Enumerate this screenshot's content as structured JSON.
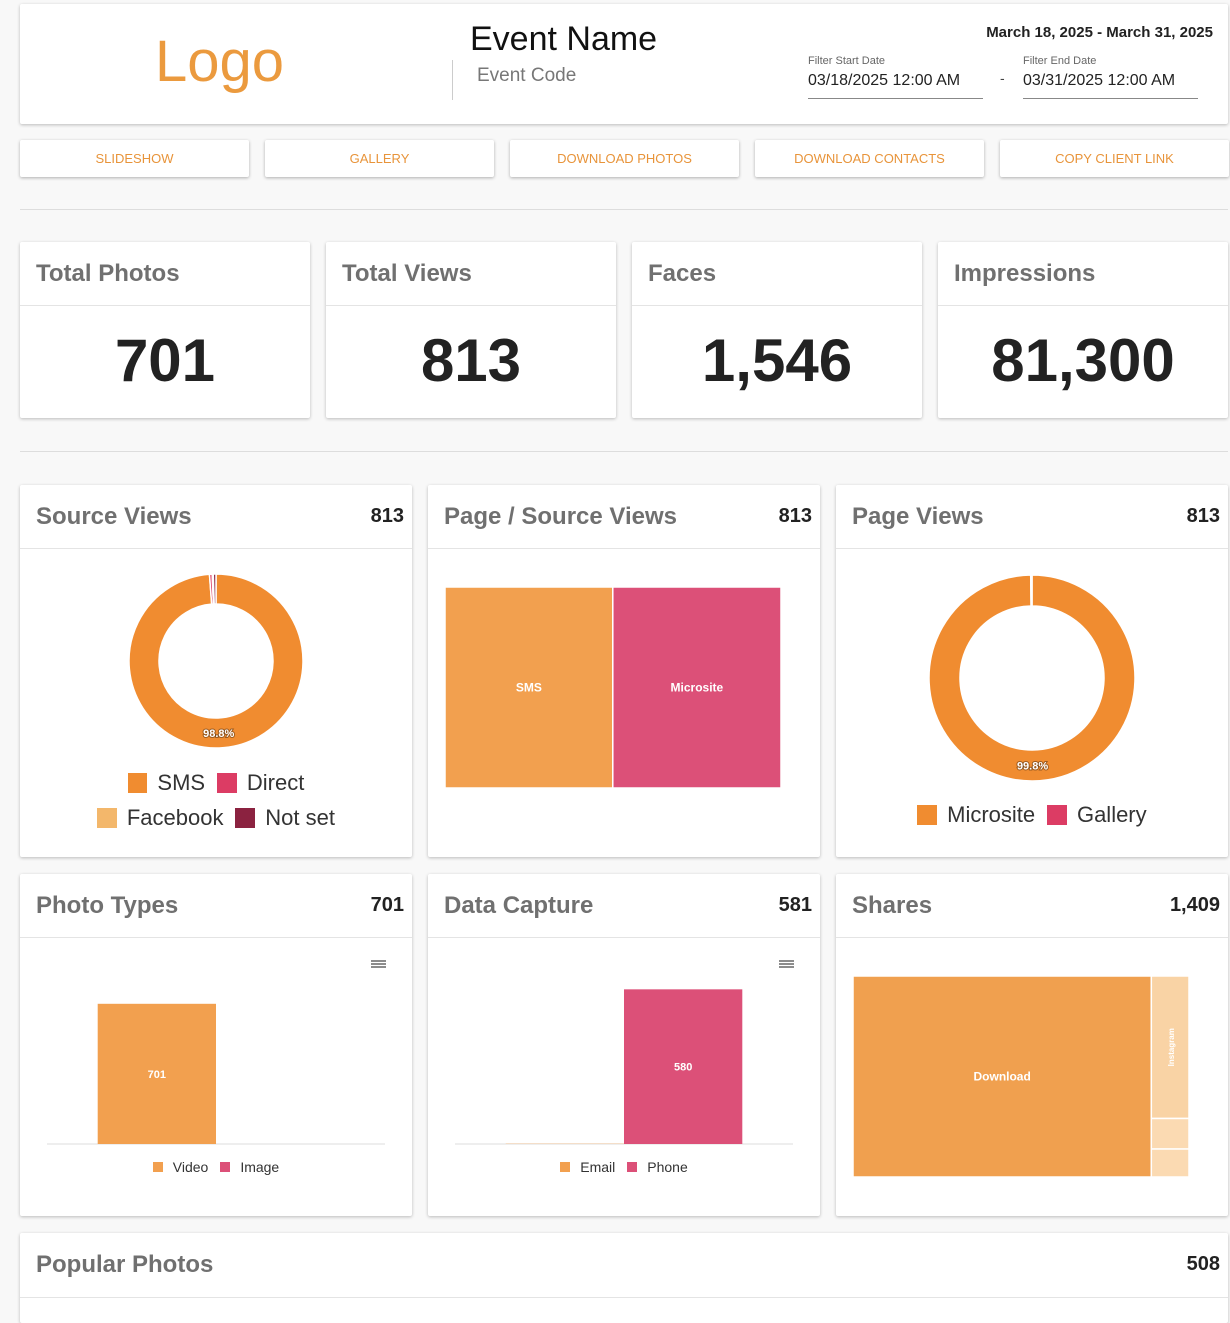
{
  "header": {
    "logo": "Logo",
    "event_name": "Event Name",
    "event_code": "Event Code",
    "date_range": "March 18, 2025 - March 31, 2025",
    "start_label": "Filter Start Date",
    "start_value": "03/18/2025 12:00 AM",
    "separator": "-",
    "end_label": "Filter End Date",
    "end_value": "03/31/2025 12:00 AM"
  },
  "buttons": [
    "SLIDESHOW",
    "GALLERY",
    "DOWNLOAD PHOTOS",
    "DOWNLOAD CONTACTS",
    "COPY CLIENT LINK"
  ],
  "stats": [
    {
      "label": "Total Photos",
      "value": "701"
    },
    {
      "label": "Total Views",
      "value": "813"
    },
    {
      "label": "Faces",
      "value": "1,546"
    },
    {
      "label": "Impressions",
      "value": "81,300"
    }
  ],
  "chart_data": [
    {
      "type": "donut",
      "title": "Source Views",
      "total": "813",
      "categories": [
        "SMS",
        "Direct",
        "Facebook",
        "Not set"
      ],
      "colors": [
        "#f08c30",
        "#dc3c64",
        "#f3b76b",
        "#8b2240"
      ],
      "values": [
        98.8,
        0.5,
        0.2,
        0.5
      ],
      "value_labels": [
        "98.8%",
        null,
        null,
        null
      ]
    },
    {
      "type": "treemap",
      "title": "Page / Source Views",
      "total": "813",
      "categories": [
        "SMS",
        "Microsite"
      ],
      "colors": [
        "#f2a04f",
        "#dc5078"
      ],
      "values": [
        406,
        407
      ]
    },
    {
      "type": "donut",
      "title": "Page Views",
      "total": "813",
      "categories": [
        "Microsite",
        "Gallery"
      ],
      "colors": [
        "#f08c30",
        "#dc3c64"
      ],
      "values": [
        99.8,
        0.2
      ],
      "value_labels": [
        "99.8%",
        null
      ]
    },
    {
      "type": "bar",
      "title": "Photo Types",
      "total": "701",
      "categories": [
        null
      ],
      "series": [
        {
          "name": "Video",
          "color": "#f2a04f",
          "values": [
            701
          ]
        },
        {
          "name": "Image",
          "color": "#dc5078",
          "values": [
            0
          ]
        }
      ]
    },
    {
      "type": "bar",
      "title": "Data Capture",
      "total": "581",
      "categories": [
        null
      ],
      "series": [
        {
          "name": "Email",
          "color": "#f2a04f",
          "values": [
            1
          ]
        },
        {
          "name": "Phone",
          "color": "#dc5078",
          "values": [
            580
          ]
        }
      ]
    },
    {
      "type": "treemap",
      "title": "Shares",
      "total": "1,409",
      "categories": [
        "Download",
        "Instagram",
        null,
        null
      ],
      "colors": [
        "#f0a04f",
        "#f9d3a5",
        "#fbdab2",
        "#fbdab2"
      ],
      "values": [
        1251,
        112,
        24,
        22
      ]
    }
  ],
  "popular_photos": {
    "title": "Popular Photos",
    "total": "508"
  }
}
